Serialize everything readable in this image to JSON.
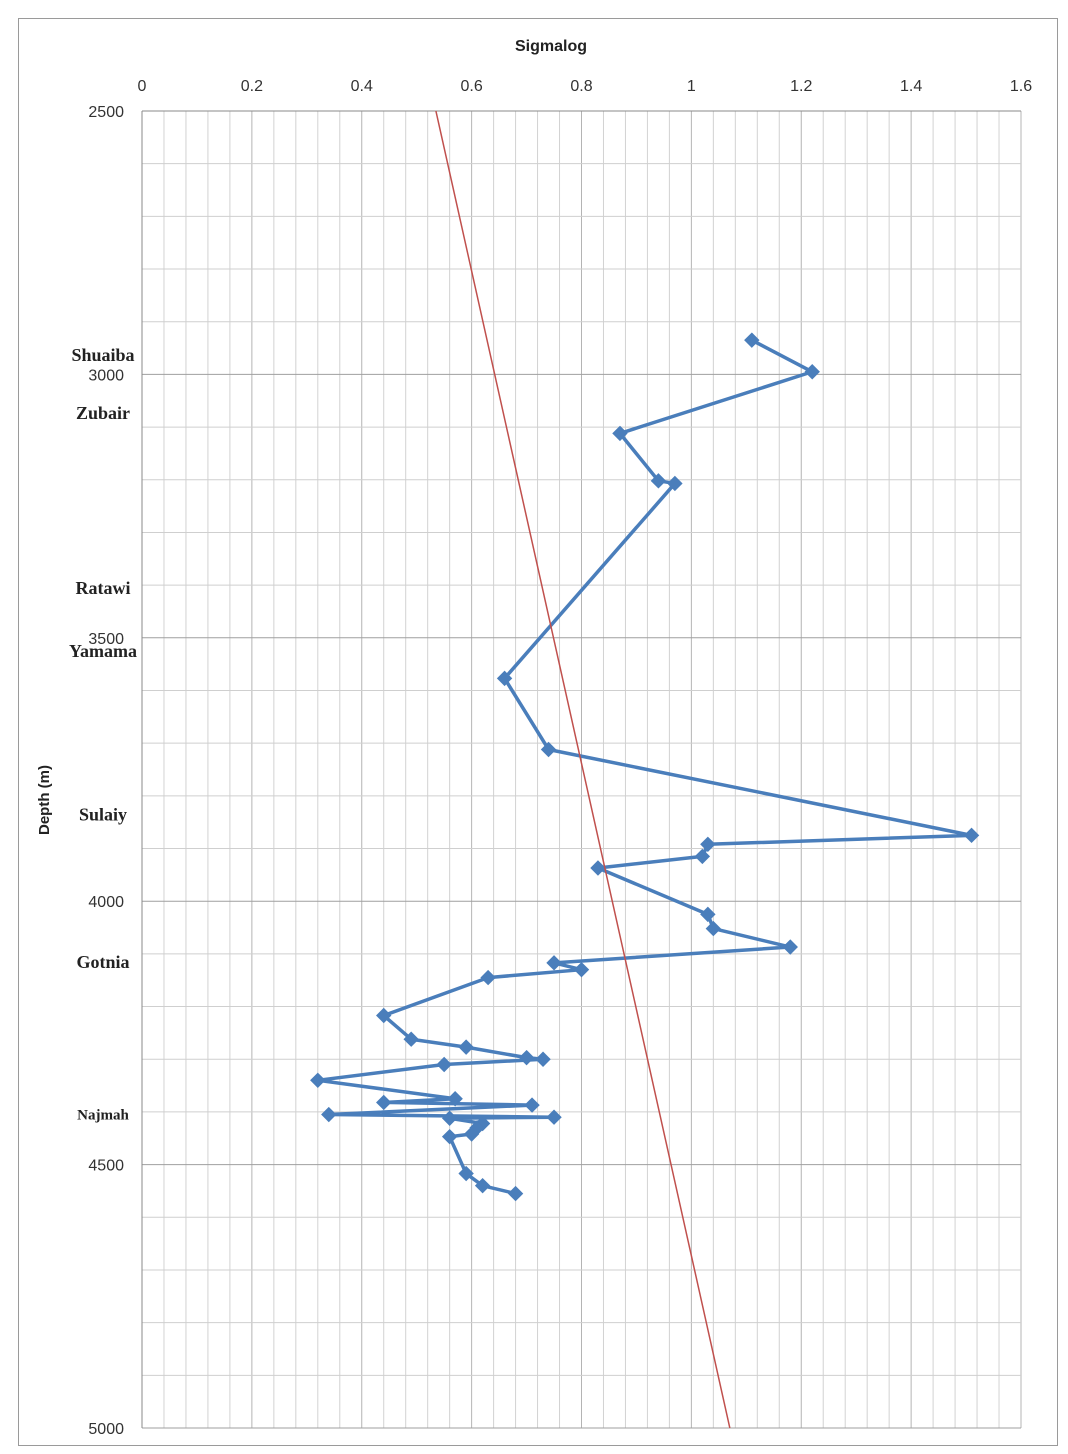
{
  "chart_data": {
    "type": "scatter",
    "title": "Sigmalog",
    "xlabel": "",
    "ylabel": "Depth (m)",
    "xlim": [
      0,
      1.6
    ],
    "ylim": [
      2500,
      5000
    ],
    "y_inverted": true,
    "x_axis_position": "top",
    "x_ticks": [
      "0",
      "0.2",
      "0.4",
      "0.6",
      "0.8",
      "1",
      "1.2",
      "1.4",
      "1.6"
    ],
    "y_ticks": [
      "2500",
      "3000",
      "3500",
      "4000",
      "4500",
      "5000"
    ],
    "grid": true,
    "legend": "none",
    "series": [
      {
        "color": "#4a7ebb",
        "marker": "diamond",
        "points": [
          {
            "x": 1.11,
            "y": 2935
          },
          {
            "x": 1.22,
            "y": 2995
          },
          {
            "x": 0.87,
            "y": 3112
          },
          {
            "x": 0.94,
            "y": 3202
          },
          {
            "x": 0.97,
            "y": 3207
          },
          {
            "x": 0.66,
            "y": 3577
          },
          {
            "x": 0.74,
            "y": 3712
          },
          {
            "x": 1.51,
            "y": 3875
          },
          {
            "x": 1.03,
            "y": 3892
          },
          {
            "x": 1.02,
            "y": 3915
          },
          {
            "x": 0.83,
            "y": 3937
          },
          {
            "x": 1.03,
            "y": 4025
          },
          {
            "x": 1.04,
            "y": 4052
          },
          {
            "x": 1.18,
            "y": 4087
          },
          {
            "x": 0.75,
            "y": 4117
          },
          {
            "x": 0.8,
            "y": 4130
          },
          {
            "x": 0.63,
            "y": 4145
          },
          {
            "x": 0.44,
            "y": 4217
          },
          {
            "x": 0.49,
            "y": 4262
          },
          {
            "x": 0.59,
            "y": 4277
          },
          {
            "x": 0.7,
            "y": 4297
          },
          {
            "x": 0.73,
            "y": 4300
          },
          {
            "x": 0.55,
            "y": 4310
          },
          {
            "x": 0.32,
            "y": 4340
          },
          {
            "x": 0.57,
            "y": 4375
          },
          {
            "x": 0.44,
            "y": 4382
          },
          {
            "x": 0.71,
            "y": 4387
          },
          {
            "x": 0.34,
            "y": 4405
          },
          {
            "x": 0.75,
            "y": 4410
          },
          {
            "x": 0.56,
            "y": 4412
          },
          {
            "x": 0.62,
            "y": 4422
          },
          {
            "x": 0.61,
            "y": 4430
          },
          {
            "x": 0.6,
            "y": 4442
          },
          {
            "x": 0.56,
            "y": 4447
          },
          {
            "x": 0.59,
            "y": 4517
          },
          {
            "x": 0.62,
            "y": 4540
          },
          {
            "x": 0.68,
            "y": 4555
          }
        ]
      },
      {
        "color": "#c0504d",
        "marker": "none",
        "points": [
          {
            "x": 0.535,
            "y": 2500
          },
          {
            "x": 1.07,
            "y": 5000
          }
        ]
      }
    ],
    "annotations": [
      {
        "text": "Shuaiba",
        "y": 2963
      },
      {
        "text": "Zubair",
        "y": 3073
      },
      {
        "text": "Ratawi",
        "y": 3405
      },
      {
        "text": "Yamama",
        "y": 3525
      },
      {
        "text": "Sulaiy",
        "y": 3835
      },
      {
        "text": "Gotnia",
        "y": 4115
      },
      {
        "text": "Najmah",
        "y": 4403
      }
    ]
  }
}
